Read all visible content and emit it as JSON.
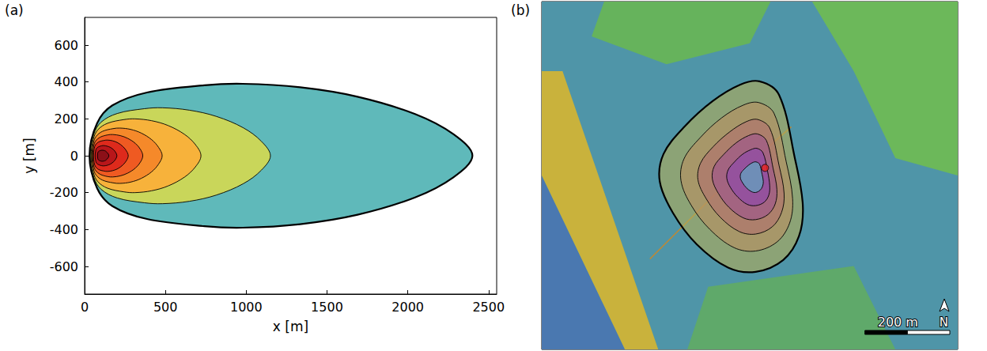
{
  "chart_data": [
    {
      "type": "contour",
      "panel_label": "(a)",
      "x_label": "x [m]",
      "y_label": "y [m]",
      "xlim": [
        0,
        2550
      ],
      "ylim": [
        -750,
        750
      ],
      "xticks": [
        0,
        500,
        1000,
        1500,
        2000,
        2500
      ],
      "yticks": [
        -600,
        -400,
        -200,
        0,
        200,
        400,
        600
      ],
      "grid": false,
      "series": [
        {
          "color": "#5fb9ba",
          "line_style": "bold",
          "x": [
            30,
            77,
            172,
            386,
            741,
            978,
            1334,
            1689,
            2045,
            2282,
            2400,
            2282,
            2045,
            1689,
            1334,
            978,
            741,
            386,
            172,
            77
          ],
          "y": [
            0,
            176,
            273,
            343,
            382,
            390,
            371,
            320,
            226,
            117,
            0,
            -117,
            -226,
            -320,
            -371,
            -390,
            -382,
            -343,
            -273,
            -176
          ]
        },
        {
          "color": "#c9d65a",
          "line_style": "thin",
          "x": [
            35,
            57,
            102,
            202,
            370,
            481,
            648,
            816,
            983,
            1094,
            1150,
            1094,
            983,
            816,
            648,
            481,
            370,
            202,
            102,
            57
          ],
          "y": [
            0,
            117,
            182,
            229,
            255,
            260,
            247,
            213,
            151,
            78,
            0,
            -78,
            -151,
            -213,
            -247,
            -260,
            -255,
            -229,
            -182,
            -117
          ]
        },
        {
          "color": "#f7b23b",
          "line_style": "thin",
          "x": [
            40,
            54,
            81,
            142,
            244,
            312,
            414,
            516,
            618,
            686,
            720,
            686,
            618,
            516,
            414,
            312,
            244,
            142,
            81,
            54
          ],
          "y": [
            0,
            90,
            140,
            176,
            196,
            200,
            190,
            164,
            116,
            60,
            0,
            -60,
            -116,
            -164,
            -190,
            -200,
            -196,
            -176,
            -140,
            -90
          ]
        },
        {
          "color": "#f5892a",
          "line_style": "thin",
          "x": [
            45,
            54,
            71,
            110,
            176,
            219,
            284,
            350,
            415,
            458,
            480,
            458,
            415,
            350,
            284,
            219,
            176,
            110,
            71,
            54
          ],
          "y": [
            0,
            68,
            105,
            132,
            147,
            150,
            143,
            123,
            87,
            45,
            0,
            -45,
            -87,
            -123,
            -143,
            -150,
            -147,
            -132,
            -105,
            -68
          ]
        },
        {
          "color": "#ef5a22",
          "line_style": "thin",
          "x": [
            50,
            56,
            69,
            97,
            143,
            174,
            221,
            267,
            314,
            345,
            360,
            345,
            314,
            267,
            221,
            174,
            143,
            97,
            69,
            56
          ],
          "y": [
            0,
            52,
            81,
            101,
            113,
            115,
            109,
            94,
            67,
            35,
            0,
            -35,
            -67,
            -94,
            -109,
            -115,
            -113,
            -101,
            -81,
            -52
          ]
        },
        {
          "color": "#de2a1c",
          "line_style": "thin",
          "x": [
            55,
            59,
            68,
            87,
            120,
            141,
            173,
            206,
            238,
            259,
            270,
            259,
            238,
            206,
            173,
            141,
            120,
            87,
            68,
            59
          ],
          "y": [
            0,
            38,
            60,
            75,
            83,
            85,
            81,
            70,
            49,
            26,
            0,
            -26,
            -49,
            -70,
            -81,
            -85,
            -83,
            -75,
            -60,
            -38
          ]
        },
        {
          "color": "#b8161a",
          "line_style": "thin",
          "x": [
            65,
            68,
            73,
            85,
            106,
            119,
            139,
            160,
            180,
            193,
            200,
            193,
            180,
            160,
            139,
            119,
            106,
            85,
            73,
            68
          ],
          "y": [
            0,
            25,
            39,
            48,
            54,
            55,
            52,
            45,
            32,
            17,
            0,
            -17,
            -32,
            -45,
            -52,
            -55,
            -54,
            -48,
            -39,
            -25
          ]
        },
        {
          "color": "#8c1018",
          "line_style": "thin",
          "x": [
            80,
            81,
            84,
            91,
            101,
            108,
            119,
            130,
            140,
            147,
            150,
            147,
            140,
            130,
            119,
            108,
            101,
            91,
            84,
            81
          ],
          "y": [
            0,
            14,
            21,
            26,
            29,
            30,
            29,
            25,
            17,
            9,
            0,
            -9,
            -17,
            -25,
            -29,
            -30,
            -29,
            -26,
            -21,
            -14
          ]
        }
      ]
    },
    {
      "type": "map",
      "panel_label": "(b)",
      "xlim": [
        0,
        980
      ],
      "ylim": [
        0,
        820
      ],
      "tick_labels": false,
      "grid": false,
      "series": [
        {
          "color": "#b5ad55",
          "line_style": "bold",
          "x": [
            513,
            559,
            596,
            615,
            606,
            569,
            504,
            439,
            365,
            309,
            278,
            287,
            337,
            402,
            467
          ],
          "y": [
            632,
            600,
            452,
            341,
            267,
            211,
            183,
            193,
            248,
            322,
            396,
            461,
            526,
            585,
            624
          ]
        },
        {
          "color": "#b99060",
          "line_style": "thin",
          "x": [
            511,
            547,
            576,
            591,
            584,
            555,
            504,
            453,
            396,
            352,
            328,
            335,
            374,
            424,
            475
          ],
          "y": [
            582,
            557,
            442,
            355,
            298,
            254,
            232,
            240,
            283,
            340,
            398,
            449,
            500,
            546,
            576
          ]
        },
        {
          "color": "#b0706e",
          "line_style": "thin",
          "x": [
            509,
            537,
            559,
            571,
            565,
            543,
            504,
            465,
            421,
            387,
            368,
            374,
            404,
            443,
            482
          ],
          "y": [
            542,
            522,
            434,
            367,
            323,
            289,
            272,
            278,
            311,
            356,
            400,
            439,
            478,
            513,
            537
          ]
        },
        {
          "color": "#9c5290",
          "line_style": "thin",
          "x": [
            508,
            529,
            545,
            554,
            550,
            533,
            504,
            475,
            441,
            416,
            402,
            406,
            429,
            458,
            487
          ],
          "y": [
            508,
            493,
            427,
            377,
            343,
            318,
            306,
            310,
            335,
            368,
            401,
            431,
            460,
            487,
            504
          ]
        },
        {
          "color": "#8c46b0",
          "line_style": "thin",
          "x": [
            507,
            521,
            532,
            537,
            535,
            524,
            504,
            484,
            462,
            445,
            436,
            439,
            454,
            473,
            493
          ],
          "y": [
            474,
            464,
            420,
            386,
            364,
            347,
            339,
            342,
            359,
            381,
            403,
            423,
            442,
            460,
            471
          ]
        },
        {
          "color": "#56b8c8",
          "line_style": "thin",
          "x": [
            505,
            513,
            519,
            522,
            520,
            514,
            504,
            494,
            482,
            473,
            468,
            469,
            477,
            488,
            498
          ],
          "y": [
            442,
            437,
            413,
            396,
            384,
            375,
            370,
            372,
            381,
            393,
            404,
            415,
            425,
            435,
            441
          ]
        },
        {
          "type": "scatter",
          "color": "#e8231e",
          "marker": "circle",
          "x": [
            526
          ],
          "y": [
            428
          ]
        }
      ],
      "scale_bar": {
        "length": 200,
        "label": "200 m"
      },
      "north_label": "N"
    }
  ]
}
